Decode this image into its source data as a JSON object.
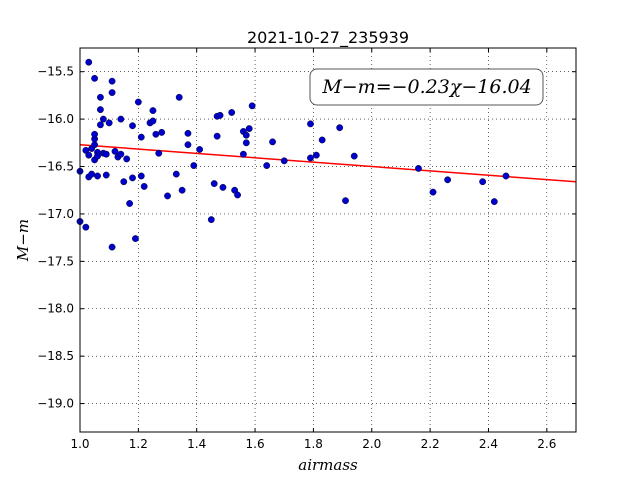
{
  "chart_data": {
    "type": "scatter",
    "title": "2021-10-27_235939",
    "xlabel": "airmass",
    "ylabel": "M−m",
    "xlim": [
      1.0,
      2.7
    ],
    "ylim": [
      -19.3,
      -15.25
    ],
    "y_inverted": true,
    "grid": true,
    "x_ticks": [
      1.0,
      1.2,
      1.4,
      1.6,
      1.8,
      2.0,
      2.2,
      2.4,
      2.6
    ],
    "x_tick_labels": [
      "1.0",
      "1.2",
      "1.4",
      "1.6",
      "1.8",
      "2.0",
      "2.2",
      "2.4",
      "2.6"
    ],
    "y_ticks": [
      -15.5,
      -16.0,
      -16.5,
      -17.0,
      -17.5,
      -18.0,
      -18.5,
      -19.0
    ],
    "y_tick_labels": [
      "−15.5",
      "−16.0",
      "−16.5",
      "−17.0",
      "−17.5",
      "−18.0",
      "−18.5",
      "−19.0"
    ],
    "annotation": "M−m=−0.23χ−16.04",
    "fit_line": {
      "slope": -0.23,
      "intercept": -16.04,
      "color": "#ff0000"
    },
    "point_color": "#0000cc",
    "points": [
      [
        1.0,
        -16.55
      ],
      [
        1.0,
        -17.08
      ],
      [
        1.02,
        -16.33
      ],
      [
        1.02,
        -17.14
      ],
      [
        1.03,
        -16.61
      ],
      [
        1.03,
        -16.38
      ],
      [
        1.03,
        -15.4
      ],
      [
        1.04,
        -16.31
      ],
      [
        1.04,
        -16.58
      ],
      [
        1.05,
        -16.43
      ],
      [
        1.05,
        -16.27
      ],
      [
        1.05,
        -16.21
      ],
      [
        1.05,
        -16.16
      ],
      [
        1.05,
        -15.57
      ],
      [
        1.06,
        -16.35
      ],
      [
        1.06,
        -16.6
      ],
      [
        1.06,
        -16.39
      ],
      [
        1.07,
        -15.77
      ],
      [
        1.07,
        -15.9
      ],
      [
        1.07,
        -16.06
      ],
      [
        1.08,
        -16.36
      ],
      [
        1.08,
        -16.0
      ],
      [
        1.09,
        -16.59
      ],
      [
        1.09,
        -16.37
      ],
      [
        1.1,
        -16.04
      ],
      [
        1.11,
        -15.72
      ],
      [
        1.11,
        -15.6
      ],
      [
        1.11,
        -17.35
      ],
      [
        1.12,
        -16.34
      ],
      [
        1.13,
        -16.4
      ],
      [
        1.14,
        -16.37
      ],
      [
        1.14,
        -16.0
      ],
      [
        1.15,
        -16.66
      ],
      [
        1.16,
        -16.42
      ],
      [
        1.17,
        -16.89
      ],
      [
        1.18,
        -16.07
      ],
      [
        1.18,
        -16.62
      ],
      [
        1.19,
        -17.26
      ],
      [
        1.2,
        -15.82
      ],
      [
        1.21,
        -16.19
      ],
      [
        1.21,
        -16.6
      ],
      [
        1.22,
        -16.71
      ],
      [
        1.24,
        -16.04
      ],
      [
        1.25,
        -15.91
      ],
      [
        1.25,
        -16.02
      ],
      [
        1.26,
        -16.16
      ],
      [
        1.27,
        -16.36
      ],
      [
        1.28,
        -16.14
      ],
      [
        1.3,
        -16.81
      ],
      [
        1.33,
        -16.58
      ],
      [
        1.34,
        -15.77
      ],
      [
        1.35,
        -16.75
      ],
      [
        1.37,
        -16.15
      ],
      [
        1.37,
        -16.27
      ],
      [
        1.39,
        -16.49
      ],
      [
        1.41,
        -16.32
      ],
      [
        1.45,
        -17.06
      ],
      [
        1.46,
        -16.68
      ],
      [
        1.47,
        -15.97
      ],
      [
        1.47,
        -16.18
      ],
      [
        1.48,
        -15.96
      ],
      [
        1.49,
        -16.72
      ],
      [
        1.52,
        -15.93
      ],
      [
        1.53,
        -16.75
      ],
      [
        1.54,
        -16.8
      ],
      [
        1.56,
        -16.37
      ],
      [
        1.56,
        -16.13
      ],
      [
        1.57,
        -16.17
      ],
      [
        1.57,
        -16.25
      ],
      [
        1.58,
        -16.1
      ],
      [
        1.59,
        -15.86
      ],
      [
        1.64,
        -16.49
      ],
      [
        1.66,
        -16.24
      ],
      [
        1.7,
        -16.44
      ],
      [
        1.79,
        -16.05
      ],
      [
        1.79,
        -16.41
      ],
      [
        1.81,
        -16.38
      ],
      [
        1.83,
        -16.22
      ],
      [
        1.89,
        -16.09
      ],
      [
        1.91,
        -16.86
      ],
      [
        1.94,
        -16.39
      ],
      [
        2.16,
        -16.52
      ],
      [
        2.21,
        -16.77
      ],
      [
        2.26,
        -16.64
      ],
      [
        2.38,
        -16.66
      ],
      [
        2.42,
        -16.87
      ],
      [
        2.46,
        -16.6
      ]
    ]
  }
}
